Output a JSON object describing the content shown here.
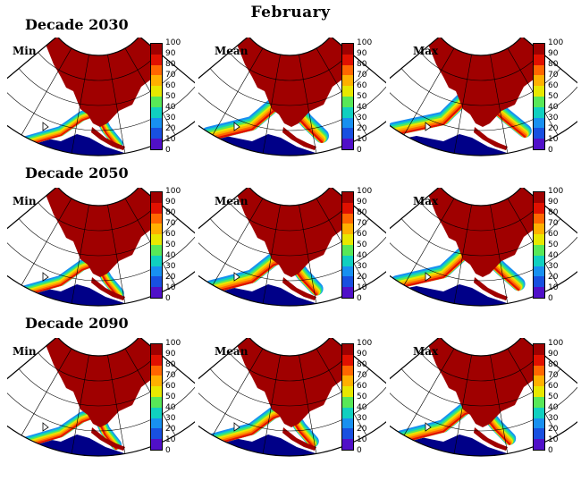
{
  "title": "February",
  "colorbar": {
    "ticks": [
      "100",
      "90",
      "80",
      "70",
      "60",
      "50",
      "40",
      "30",
      "20",
      "10",
      "0"
    ],
    "colors": [
      "#a00000",
      "#e01000",
      "#ff6600",
      "#ffb000",
      "#e8e800",
      "#58e858",
      "#10d0c0",
      "#1890f0",
      "#1850e0",
      "#5010c8",
      "#000088"
    ]
  },
  "rows": [
    {
      "decade": "Decade 2030",
      "panels": [
        {
          "label": "Min",
          "ice_extent": 0.1,
          "band": 0.08
        },
        {
          "label": "Mean",
          "ice_extent": 0.45,
          "band": 0.2
        },
        {
          "label": "Max",
          "ice_extent": 0.78,
          "band": 0.18
        }
      ]
    },
    {
      "decade": "Decade 2050",
      "panels": [
        {
          "label": "Min",
          "ice_extent": 0.12,
          "band": 0.1
        },
        {
          "label": "Mean",
          "ice_extent": 0.3,
          "band": 0.18
        },
        {
          "label": "Max",
          "ice_extent": 0.6,
          "band": 0.18
        }
      ]
    },
    {
      "decade": "Decade 2090",
      "panels": [
        {
          "label": "Min",
          "ice_extent": 0.05,
          "band": 0.1
        },
        {
          "label": "Mean",
          "ice_extent": 0.2,
          "band": 0.14
        },
        {
          "label": "Max",
          "ice_extent": 0.35,
          "band": 0.16
        }
      ]
    }
  ]
}
